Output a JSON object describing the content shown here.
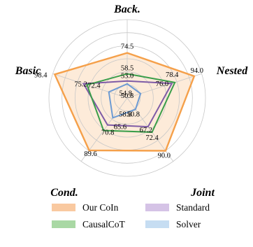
{
  "chart_data": {
    "type": "radar",
    "axes": [
      "Back.",
      "Nested",
      "Joint",
      "Cond.",
      "Basic"
    ],
    "rlim": [
      40,
      100
    ],
    "grid": true,
    "rings": [
      50,
      60,
      70,
      80,
      90,
      100
    ],
    "series": [
      {
        "name": "Our CoIn",
        "color": "#F5A04A",
        "fill": "#FDE7D2",
        "values": [
          74.5,
          94.0,
          90.0,
          89.6,
          98.4
        ]
      },
      {
        "name": "CausalCoT",
        "color": "#3A9E4A",
        "fill": null,
        "values": [
          58.5,
          78.4,
          72.4,
          70.8,
          72.4
        ]
      },
      {
        "name": "Standard",
        "color": "#7E5BA6",
        "fill": null,
        "values": [
          53.0,
          76.0,
          67.2,
          65.6,
          75.2
        ]
      },
      {
        "name": "Solver",
        "color": "#6D9BD3",
        "fill": null,
        "values": [
          50.8,
          50.8,
          50.8,
          58.8,
          54.8
        ]
      }
    ],
    "value_labels": [
      {
        "text": "74.5",
        "axis": 0,
        "value": 74.5
      },
      {
        "text": "58.5",
        "axis": 0,
        "value": 58.5
      },
      {
        "text": "53.0",
        "axis": 0,
        "value": 53.0
      },
      {
        "text": "50.8",
        "axis": 0,
        "value": 50.8
      },
      {
        "text": "94.0",
        "axis": 1,
        "value": 94.0
      },
      {
        "text": "78.4",
        "axis": 1,
        "value": 78.4
      },
      {
        "text": "76.0",
        "axis": 1,
        "value": 76.0
      },
      {
        "text": "90.0",
        "axis": 2,
        "value": 90.0
      },
      {
        "text": "72.4",
        "axis": 2,
        "value": 72.4
      },
      {
        "text": "67.2",
        "axis": 2,
        "value": 67.2
      },
      {
        "text": "50.8",
        "axis": 2,
        "value": 50.8
      },
      {
        "text": "89.6",
        "axis": 3,
        "value": 89.6
      },
      {
        "text": "70.8",
        "axis": 3,
        "value": 70.8
      },
      {
        "text": "65.6",
        "axis": 3,
        "value": 65.6
      },
      {
        "text": "58.8",
        "axis": 3,
        "value": 58.8
      },
      {
        "text": "98.4",
        "axis": 4,
        "value": 98.4
      },
      {
        "text": "75.2",
        "axis": 4,
        "value": 75.2
      },
      {
        "text": "72.4",
        "axis": 4,
        "value": 72.4
      },
      {
        "text": "54.8",
        "axis": 4,
        "value": 54.8
      }
    ],
    "legend": {
      "placement": "bottom",
      "items": [
        {
          "label": "Our CoIn",
          "color": "#F9C9A0"
        },
        {
          "label": "Standard",
          "color": "#D5C3E6"
        },
        {
          "label": "CausalCoT",
          "color": "#A9D8A4"
        },
        {
          "label": "Solver",
          "color": "#C6DDF2"
        }
      ]
    }
  }
}
